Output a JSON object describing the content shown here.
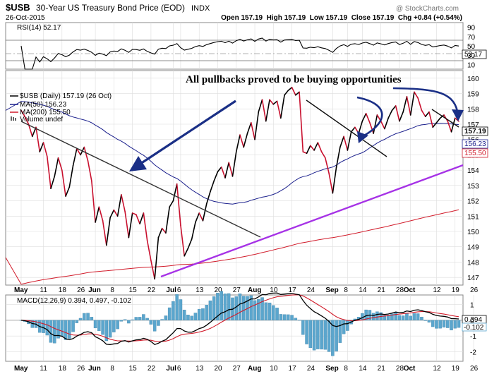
{
  "header": {
    "symbol": "$USB",
    "name": "30-Year US Treasury Bond Price (EOD)",
    "exchange": "INDX",
    "date": "26-Oct-2015",
    "watermark": "@ StockCharts.com",
    "quote_line": "Open 157.19  High 157.19  Low 157.19  Close 157.19  Chg +0.84 (+0.54%)"
  },
  "rsi": {
    "label": "RSI(14) 52.17",
    "value_badge": "52.17",
    "ticks": [
      90,
      70,
      50,
      30,
      10
    ],
    "ylim": [
      0,
      100
    ],
    "levels": [
      70,
      30
    ]
  },
  "annotation": "All pullbacks proved to be buying opportunities",
  "legend": {
    "price": "$USB (Daily) 157.19 (26 Oct)",
    "ma50": "MA(50) 156.23",
    "ma200": "MA(200) 155.50",
    "volume": "Volume undef"
  },
  "badges": {
    "price": "157.19",
    "ma50": "156.23",
    "ma200": "155.50",
    "macd": "0.394",
    "hist": "-0.102"
  },
  "macd": {
    "label": "MACD(12,26,9) 0.394, 0.497, -0.102",
    "ticks": [
      1,
      0,
      -1,
      -2
    ],
    "ylim": [
      -2.6,
      1.6
    ]
  },
  "colors": {
    "price_up": "#000000",
    "price_down": "#c8102e",
    "ma50": "#1a1f8c",
    "ma200": "#d11b2a",
    "trend_support": "#a632e6",
    "trend_resistance": "#333333",
    "annotation_arrow": "#1a2f86",
    "histogram": "#5ba6cd",
    "grid": "#dddddd"
  },
  "chart_data": {
    "type": "line",
    "ylim": [
      146.5,
      160.5
    ],
    "yticks": [
      160,
      159,
      158,
      157,
      156,
      155,
      154,
      153,
      152,
      151,
      150,
      149,
      148,
      147
    ],
    "xticks": [
      {
        "label": "May",
        "x": 0,
        "bold": true
      },
      {
        "label": "11",
        "x": 6
      },
      {
        "label": "18",
        "x": 11
      },
      {
        "label": "26",
        "x": 16
      },
      {
        "label": "Jun",
        "x": 20,
        "bold": true
      },
      {
        "label": "8",
        "x": 25
      },
      {
        "label": "15",
        "x": 30
      },
      {
        "label": "22",
        "x": 35
      },
      {
        "label": "Jul",
        "x": 41,
        "bold": true
      },
      {
        "label": "6",
        "x": 43
      },
      {
        "label": "13",
        "x": 48
      },
      {
        "label": "20",
        "x": 53
      },
      {
        "label": "27",
        "x": 58
      },
      {
        "label": "Aug",
        "x": 63,
        "bold": true
      },
      {
        "label": "10",
        "x": 68
      },
      {
        "label": "17",
        "x": 73
      },
      {
        "label": "24",
        "x": 78
      },
      {
        "label": "Sep",
        "x": 84,
        "bold": true
      },
      {
        "label": "8",
        "x": 88
      },
      {
        "label": "14",
        "x": 92
      },
      {
        "label": "21",
        "x": 97
      },
      {
        "label": "28",
        "x": 102
      },
      {
        "label": "Oct",
        "x": 105,
        "bold": true
      },
      {
        "label": "12",
        "x": 112
      },
      {
        "label": "19",
        "x": 117
      },
      {
        "label": "26",
        "x": 122
      }
    ],
    "series": [
      {
        "name": "$USB (Daily)",
        "values": [
          157.9,
          157.5,
          157.0,
          156.2,
          156.8,
          155.2,
          155.8,
          154.9,
          152.8,
          153.6,
          154.8,
          154.0,
          152.3,
          152.9,
          154.3,
          155.4,
          155.0,
          155.5,
          154.6,
          153.3,
          150.6,
          151.6,
          150.7,
          149.1,
          150.9,
          151.4,
          151.0,
          152.4,
          151.3,
          149.6,
          151.2,
          151.1,
          150.5,
          151.2,
          149.4,
          148.1,
          146.9,
          149.6,
          150.2,
          149.9,
          151.6,
          152.0,
          153.1,
          150.4,
          148.4,
          148.9,
          149.5,
          150.6,
          151.2,
          150.7,
          151.8,
          152.6,
          153.3,
          153.9,
          154.2,
          153.5,
          154.5,
          153.6,
          155.2,
          156.3,
          155.5,
          156.4,
          157.1,
          156.0,
          157.8,
          158.6,
          157.2,
          158.6,
          158.3,
          158.5,
          157.4,
          158.9,
          159.2,
          159.4,
          158.9,
          159.1,
          155.2,
          155.1,
          155.6,
          155.3,
          155.8,
          155.2,
          154.8,
          153.8,
          152.5,
          154.2,
          155.5,
          156.2,
          155.3,
          156.5,
          156.8,
          156.4,
          157.2,
          157.7,
          157.1,
          156.4,
          157.6,
          157.2,
          156.7,
          157.4,
          157.9,
          158.2,
          157.2,
          157.8,
          158.8,
          157.6,
          159.1,
          158.7,
          157.9,
          157.5,
          157.8,
          156.8,
          157.1,
          157.4,
          157.6,
          157.2,
          156.5,
          157.4,
          157.19
        ],
        "source": "approx. sampled"
      }
    ]
  }
}
